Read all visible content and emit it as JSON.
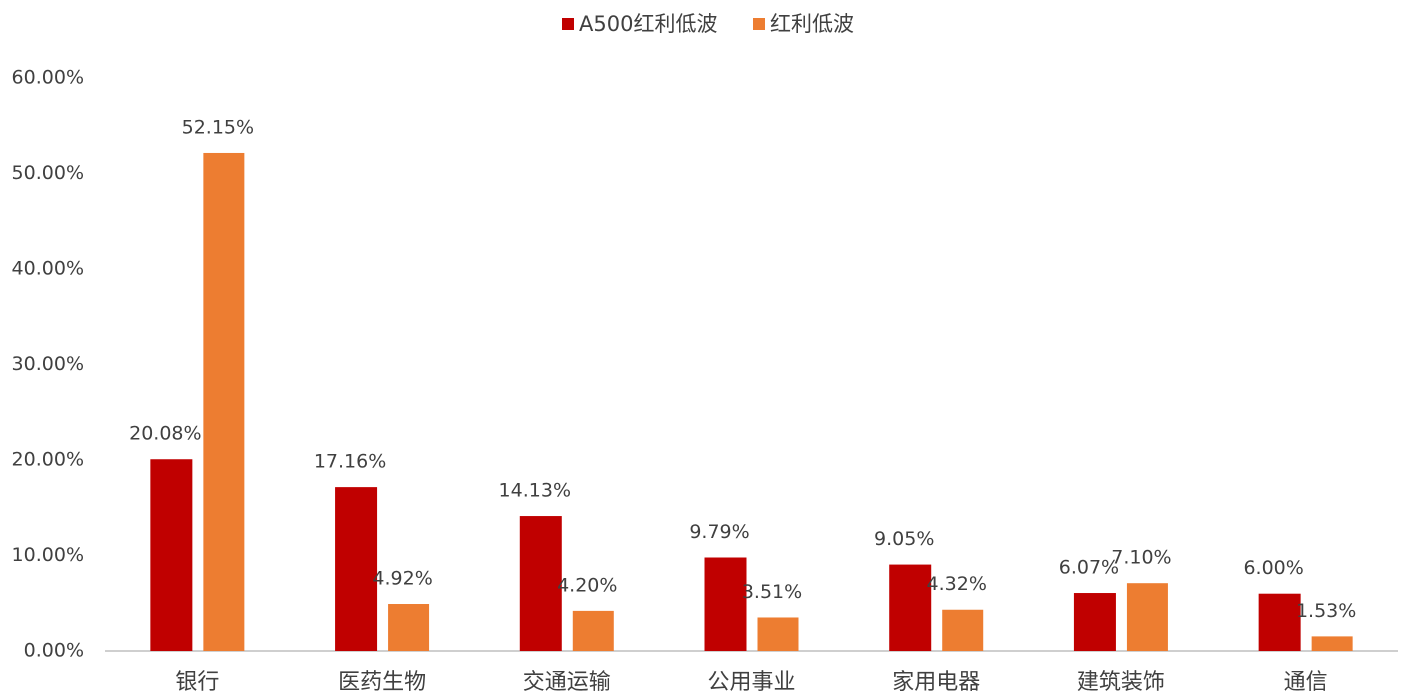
{
  "chart_data": {
    "type": "bar",
    "categories": [
      "银行",
      "医药生物",
      "交通运输",
      "公用事业",
      "家用电器",
      "建筑装饰",
      "通信"
    ],
    "series": [
      {
        "name": "A500红利低波",
        "color": "#c00000",
        "values": [
          20.08,
          17.16,
          14.13,
          9.79,
          9.05,
          6.07,
          6.0
        ],
        "value_labels": [
          "20.08%",
          "17.16%",
          "14.13%",
          "9.79%",
          "9.05%",
          "6.07%",
          "6.00%"
        ]
      },
      {
        "name": "红利低波",
        "color": "#ed7d31",
        "values": [
          52.15,
          4.92,
          4.2,
          3.51,
          4.32,
          7.1,
          1.53
        ],
        "value_labels": [
          "52.15%",
          "4.92%",
          "4.20%",
          "3.51%",
          "4.32%",
          "7.10%",
          "1.53%"
        ]
      }
    ],
    "ylim": [
      0,
      60
    ],
    "yticks": [
      {
        "value": 0,
        "label": "0.00%"
      },
      {
        "value": 10,
        "label": "10.00%"
      },
      {
        "value": 20,
        "label": "20.00%"
      },
      {
        "value": 30,
        "label": "30.00%"
      },
      {
        "value": 40,
        "label": "40.00%"
      },
      {
        "value": 50,
        "label": "50.00%"
      },
      {
        "value": 60,
        "label": "60.00%"
      }
    ],
    "grid": false
  }
}
